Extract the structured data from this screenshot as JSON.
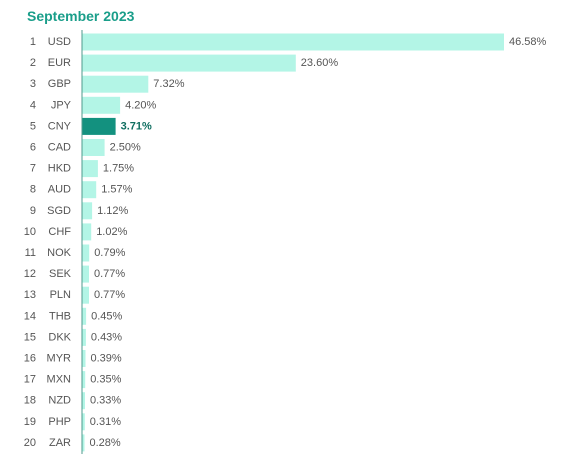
{
  "chart_data": {
    "type": "bar",
    "orientation": "horizontal",
    "title": "September 2023",
    "ranks": [
      "1",
      "2",
      "3",
      "4",
      "5",
      "6",
      "7",
      "8",
      "9",
      "10",
      "11",
      "12",
      "13",
      "14",
      "15",
      "16",
      "17",
      "18",
      "19",
      "20"
    ],
    "categories": [
      "USD",
      "EUR",
      "GBP",
      "JPY",
      "CNY",
      "CAD",
      "HKD",
      "AUD",
      "SGD",
      "CHF",
      "NOK",
      "SEK",
      "PLN",
      "THB",
      "DKK",
      "MYR",
      "MXN",
      "NZD",
      "PHP",
      "ZAR"
    ],
    "values": [
      46.58,
      23.6,
      7.32,
      4.2,
      3.71,
      2.5,
      1.75,
      1.57,
      1.12,
      1.02,
      0.79,
      0.77,
      0.77,
      0.45,
      0.43,
      0.39,
      0.35,
      0.33,
      0.31,
      0.28
    ],
    "value_labels": [
      "46.58%",
      "23.60%",
      "7.32%",
      "4.20%",
      "3.71%",
      "2.50%",
      "1.75%",
      "1.57%",
      "1.12%",
      "1.02%",
      "0.79%",
      "0.77%",
      "0.77%",
      "0.45%",
      "0.43%",
      "0.39%",
      "0.35%",
      "0.33%",
      "0.31%",
      "0.28%"
    ],
    "highlight": "CNY",
    "xlim": [
      0,
      46.58
    ],
    "grid": false,
    "colors": {
      "bar": "#b3f5e6",
      "highlight_bar": "#13917f",
      "highlight_label": "#0f6e60",
      "axis": "#4f9a8c",
      "title": "#1a9e8a",
      "text": "#555555"
    }
  }
}
